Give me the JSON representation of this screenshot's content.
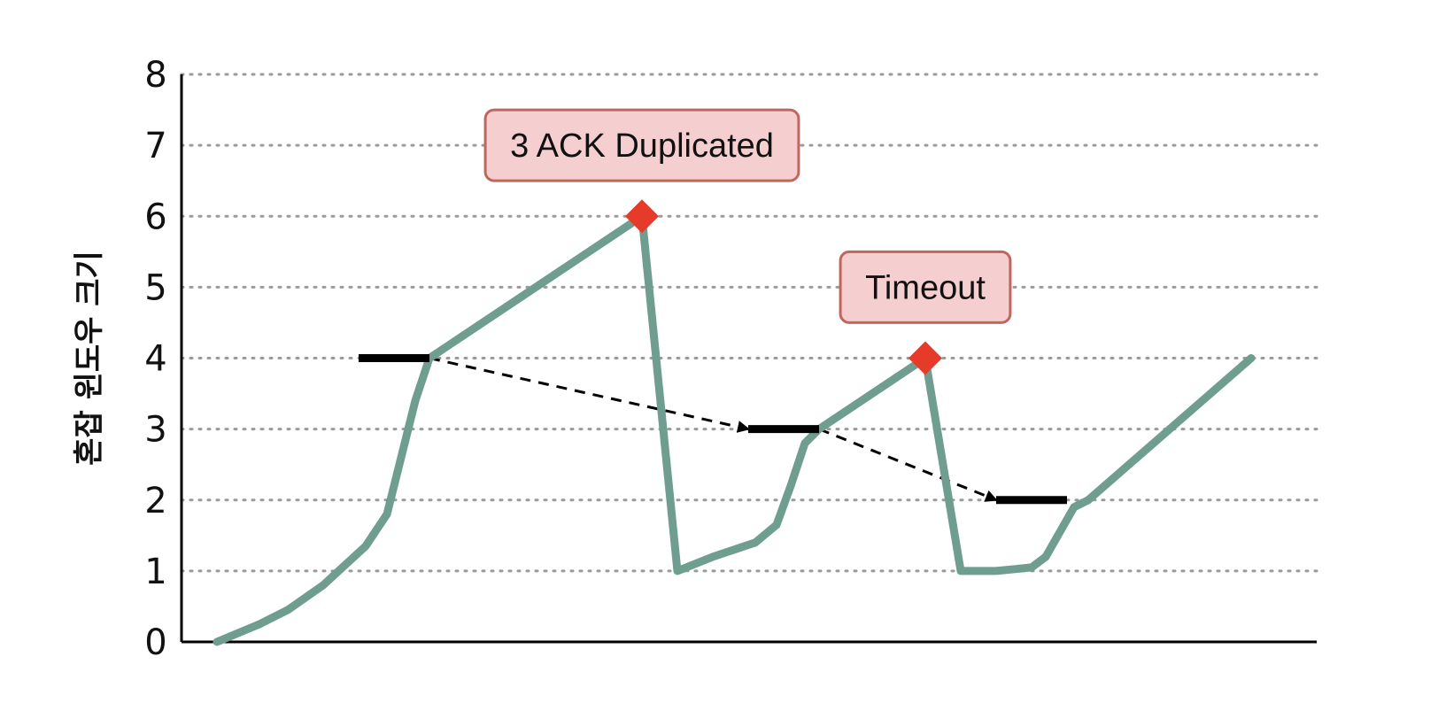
{
  "chart_data": {
    "type": "line",
    "ylabel": "혼잡 윈도우 크기",
    "xlabel": "",
    "title": "",
    "ylim": [
      0,
      8
    ],
    "yticks": [
      "0",
      "1",
      "2",
      "3",
      "4",
      "5",
      "6",
      "7",
      "8"
    ],
    "grid": "horizontal-dotted",
    "colors": {
      "line": "#6f9e90",
      "marker": "#e63b2a",
      "threshold": "#000000",
      "box_fill": "#f5cfcf",
      "box_border": "#c0665e",
      "grid": "#9a9a9a"
    },
    "series": [
      {
        "points": [
          [
            0.0,
            0
          ],
          [
            0.6,
            0.25
          ],
          [
            1.0,
            0.45
          ],
          [
            1.5,
            0.8
          ],
          [
            2.1,
            1.35
          ],
          [
            2.4,
            1.8
          ],
          [
            2.6,
            2.6
          ],
          [
            2.8,
            3.4
          ],
          [
            3.0,
            4.0
          ],
          [
            6.0,
            6.0
          ],
          [
            6.5,
            1.0
          ],
          [
            7.0,
            1.2
          ],
          [
            7.6,
            1.4
          ],
          [
            7.9,
            1.65
          ],
          [
            8.1,
            2.2
          ],
          [
            8.3,
            2.8
          ],
          [
            8.5,
            3.0
          ],
          [
            10.0,
            4.0
          ],
          [
            10.5,
            1.0
          ],
          [
            11.0,
            1.0
          ],
          [
            11.5,
            1.05
          ],
          [
            11.7,
            1.2
          ],
          [
            11.9,
            1.55
          ],
          [
            12.1,
            1.9
          ],
          [
            12.3,
            2.0
          ],
          [
            14.6,
            4.0
          ]
        ]
      }
    ],
    "markers": [
      {
        "x": 6.0,
        "y": 6.0
      },
      {
        "x": 10.0,
        "y": 4.0
      }
    ],
    "thresholds": [
      {
        "x0": 2.0,
        "x1": 3.0,
        "y": 4
      },
      {
        "x0": 7.5,
        "x1": 8.5,
        "y": 3
      },
      {
        "x0": 11.0,
        "x1": 12.0,
        "y": 2
      }
    ],
    "threshold_arrows": [
      {
        "from": [
          3.0,
          4
        ],
        "to": [
          7.5,
          3
        ]
      },
      {
        "from": [
          8.5,
          3
        ],
        "to": [
          11.0,
          2
        ]
      }
    ],
    "annotations": [
      {
        "text": "3 ACK Duplicated",
        "x": 6.0,
        "y": 7.0
      },
      {
        "text": "Timeout",
        "x": 10.0,
        "y": 5.0
      }
    ]
  }
}
